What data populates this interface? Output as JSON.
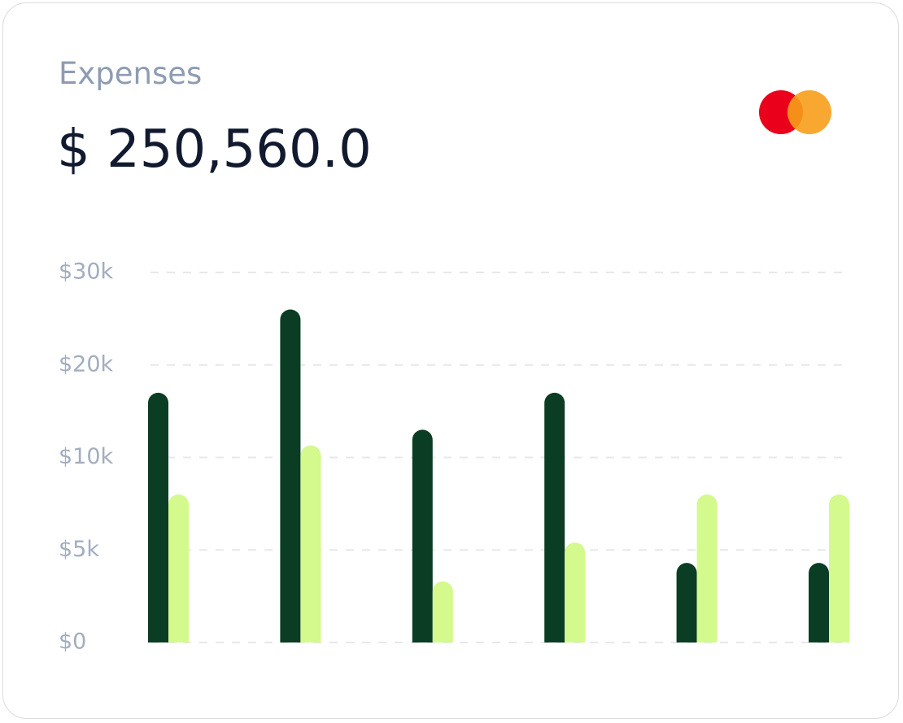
{
  "card": {
    "title": "Expenses",
    "amount": "$ 250,560.0"
  },
  "chart_data": {
    "type": "bar",
    "categories": [
      null,
      null,
      null,
      null,
      null,
      null
    ],
    "series": [
      {
        "color": "#0b3d24",
        "values": [
          17000,
          26000,
          13000,
          17000,
          4300,
          4300
        ]
      },
      {
        "color": "#d4f98c",
        "values": [
          8000,
          11300,
          3300,
          5400,
          8000,
          8000
        ]
      }
    ],
    "ylim": [
      0,
      30000
    ],
    "yticks": [
      {
        "value": 0,
        "label": "$0"
      },
      {
        "value": 5000,
        "label": "$5k"
      },
      {
        "value": 10000,
        "label": "$10k"
      },
      {
        "value": 20000,
        "label": "$20k"
      },
      {
        "value": 30000,
        "label": "$30k"
      }
    ],
    "grid": true
  }
}
